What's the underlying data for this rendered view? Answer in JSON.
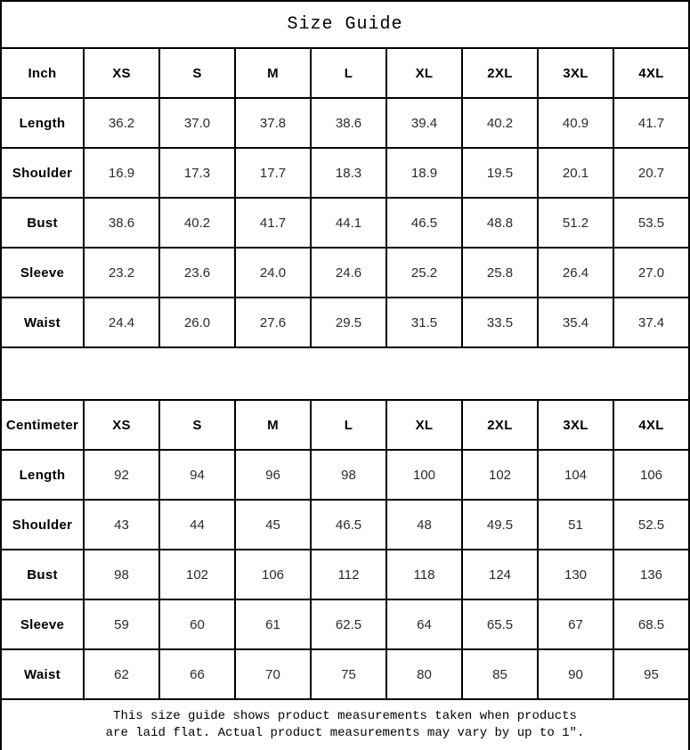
{
  "title": "Size Guide",
  "colors": {
    "border": "#000000",
    "background": "#ffffff",
    "text": "#000000"
  },
  "tables": [
    {
      "unit_label": "Inch",
      "size_headers": [
        "XS",
        "S",
        "M",
        "L",
        "XL",
        "2XL",
        "3XL",
        "4XL"
      ],
      "rows": [
        {
          "label": "Length",
          "values": [
            "36.2",
            "37.0",
            "37.8",
            "38.6",
            "39.4",
            "40.2",
            "40.9",
            "41.7"
          ]
        },
        {
          "label": "Shoulder",
          "values": [
            "16.9",
            "17.3",
            "17.7",
            "18.3",
            "18.9",
            "19.5",
            "20.1",
            "20.7"
          ]
        },
        {
          "label": "Bust",
          "values": [
            "38.6",
            "40.2",
            "41.7",
            "44.1",
            "46.5",
            "48.8",
            "51.2",
            "53.5"
          ]
        },
        {
          "label": "Sleeve",
          "values": [
            "23.2",
            "23.6",
            "24.0",
            "24.6",
            "25.2",
            "25.8",
            "26.4",
            "27.0"
          ]
        },
        {
          "label": "Waist",
          "values": [
            "24.4",
            "26.0",
            "27.6",
            "29.5",
            "31.5",
            "33.5",
            "35.4",
            "37.4"
          ]
        }
      ]
    },
    {
      "unit_label": "Centimeter",
      "size_headers": [
        "XS",
        "S",
        "M",
        "L",
        "XL",
        "2XL",
        "3XL",
        "4XL"
      ],
      "rows": [
        {
          "label": "Length",
          "values": [
            "92",
            "94",
            "96",
            "98",
            "100",
            "102",
            "104",
            "106"
          ]
        },
        {
          "label": "Shoulder",
          "values": [
            "43",
            "44",
            "45",
            "46.5",
            "48",
            "49.5",
            "51",
            "52.5"
          ]
        },
        {
          "label": "Bust",
          "values": [
            "98",
            "102",
            "106",
            "112",
            "118",
            "124",
            "130",
            "136"
          ]
        },
        {
          "label": "Sleeve",
          "values": [
            "59",
            "60",
            "61",
            "62.5",
            "64",
            "65.5",
            "67",
            "68.5"
          ]
        },
        {
          "label": "Waist",
          "values": [
            "62",
            "66",
            "70",
            "75",
            "80",
            "85",
            "90",
            "95"
          ]
        }
      ]
    }
  ],
  "footer": {
    "line1": "This size guide shows product measurements taken when products",
    "line2": "are laid flat. Actual product measurements may vary by up to 1″."
  }
}
